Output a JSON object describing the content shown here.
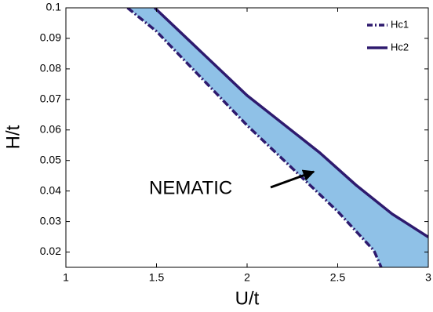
{
  "chart_data": {
    "type": "area-between",
    "xlabel": "U/t",
    "ylabel": "H/t",
    "annotation": "NEMATIC",
    "fill_color": "#8fc1e7",
    "series": [
      {
        "name": "Hc1",
        "color": "#2e1a6e",
        "style": "dashdot",
        "x": [
          1.34,
          1.5,
          2.0,
          2.5,
          2.7,
          2.74
        ],
        "values": [
          0.1,
          0.0923,
          0.0615,
          0.0333,
          0.0205,
          0.015
        ]
      },
      {
        "name": "Hc2",
        "color": "#2e1a6e",
        "style": "solid",
        "x": [
          1.49,
          2.0,
          2.4,
          2.6,
          2.8,
          3.0
        ],
        "values": [
          0.1,
          0.0713,
          0.0526,
          0.042,
          0.0325,
          0.0249
        ]
      }
    ],
    "xlim": [
      1,
      3
    ],
    "xticks": [
      1,
      1.5,
      2,
      2.5,
      3
    ],
    "ylim": [
      0.015,
      0.1
    ],
    "yticks": [
      0.02,
      0.03,
      0.04,
      0.05,
      0.06,
      0.07,
      0.08,
      0.09,
      0.1
    ],
    "legend": "upper right"
  }
}
